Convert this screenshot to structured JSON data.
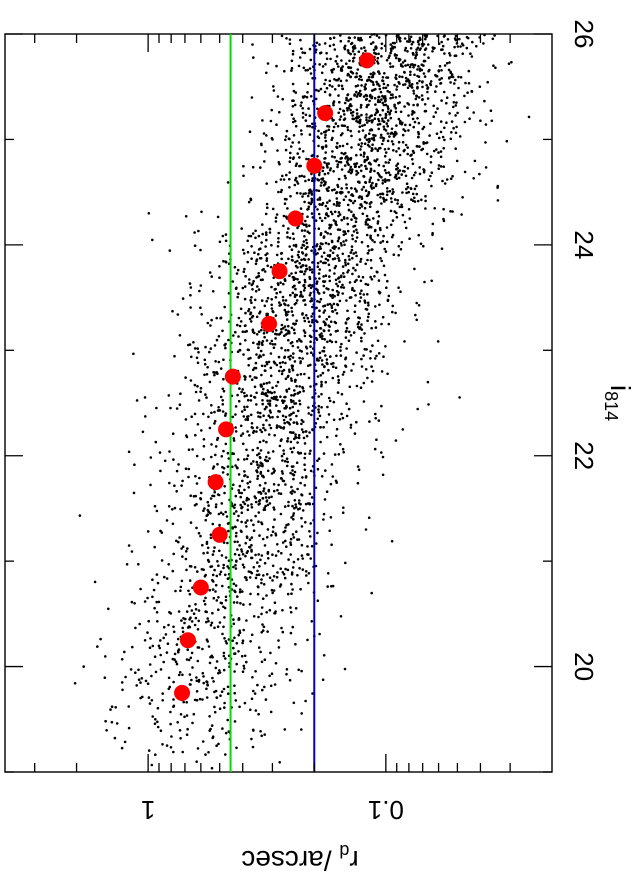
{
  "chart_data": {
    "type": "scatter",
    "orientation": "rotated-90",
    "title": "",
    "xlabel": "i",
    "xlabel_subscript": "814",
    "ylabel": "r",
    "ylabel_subscript": "d",
    "ylabel_suffix": " /arcsec",
    "xlim": [
      19,
      26
    ],
    "ylim": [
      0.02,
      4
    ],
    "yscale": "log",
    "grid": false,
    "legend": "none",
    "x_ticks": [
      20,
      22,
      24,
      26
    ],
    "x_tick_labels": [
      "20",
      "22",
      "24",
      "26"
    ],
    "y_ticks": [
      1,
      0.1
    ],
    "y_tick_labels": [
      "1",
      "0.1"
    ],
    "colors": {
      "points": "#000000",
      "medians": "#ff0000",
      "green_line": "#00dd00",
      "blue_line": "#0000cc"
    },
    "reference_lines": [
      {
        "axis": "y",
        "value": 0.45,
        "color": "#00dd00"
      },
      {
        "axis": "y",
        "value": 0.2,
        "color": "#0000cc"
      }
    ],
    "series": [
      {
        "kind": "points",
        "color": "#000000",
        "distribution": {
          "count": 3800,
          "seed": 11,
          "mean_logr_at_x19": -0.15,
          "mean_logr_slope": -0.115,
          "sigma_logr": 0.2,
          "faint_bias": 1.6
        }
      },
      {
        "kind": "medians",
        "color": "#ff0000",
        "x": [
          19.75,
          20.25,
          20.75,
          21.25,
          21.75,
          22.25,
          22.75,
          23.25,
          23.75,
          24.25,
          24.75,
          25.25,
          25.75
        ],
        "y": [
          0.72,
          0.68,
          0.6,
          0.5,
          0.52,
          0.47,
          0.44,
          0.31,
          0.28,
          0.24,
          0.2,
          0.18,
          0.12
        ]
      }
    ]
  }
}
